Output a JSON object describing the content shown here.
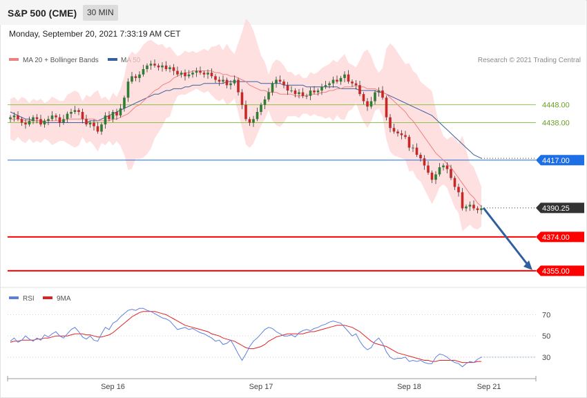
{
  "header": {
    "title": "S&P 500 (CME)",
    "timeframe": "30 MIN",
    "timestamp": "Monday, September 20, 2021 7:33:19 AM CET"
  },
  "legend": {
    "ma20": "MA 20 + Bollinger Bands",
    "ma50": "MA 50",
    "credit": "Research © 2021 Trading Central",
    "rsi": "RSI",
    "rsi_ma": "9MA"
  },
  "colors": {
    "bull": "#2e7d32",
    "bear": "#c62828",
    "band": "#ffd6d6",
    "ma20": "#f08080",
    "ma50": "#3a5f9e",
    "support": "#ff0000",
    "pivot": "#1e6ee6",
    "resistance": "#8bc34a",
    "arrow": "#2f5f9e",
    "rsi": "#5b7fe0",
    "rsi_ma": "#e02020"
  },
  "chart_data": [
    {
      "type": "candlestick",
      "title": "S&P 500 (CME) 30 MIN",
      "x_ticks": [
        "Sep 16",
        "Sep 17",
        "Sep 18",
        "Sep 21"
      ],
      "ylim": [
        4348,
        4468
      ],
      "levels": [
        {
          "label": "4448.00",
          "value": 4448.0,
          "role": "resistance",
          "color": "#8bc34a"
        },
        {
          "label": "4438.00",
          "value": 4438.0,
          "role": "resistance",
          "color": "#8bc34a"
        },
        {
          "label": "4417.00",
          "value": 4417.0,
          "role": "pivot",
          "color": "#1e6ee6"
        },
        {
          "label": "4390.25",
          "value": 4390.25,
          "role": "last",
          "color": "#333333"
        },
        {
          "label": "4374.00",
          "value": 4374.0,
          "role": "support",
          "color": "#ff0000"
        },
        {
          "label": "4355.00",
          "value": 4355.0,
          "role": "support",
          "color": "#ff0000"
        }
      ],
      "close": [
        4441,
        4442,
        4440,
        4438,
        4437,
        4439,
        4441,
        4440,
        4437,
        4439,
        4440,
        4442,
        4441,
        4438,
        4440,
        4443,
        4444,
        4445,
        4444,
        4440,
        4437,
        4438,
        4436,
        4433,
        4437,
        4442,
        4440,
        4444,
        4442,
        4446,
        4452,
        4461,
        4464,
        4463,
        4465,
        4468,
        4470,
        4471,
        4470,
        4469,
        4470,
        4468,
        4469,
        4467,
        4465,
        4466,
        4464,
        4465,
        4466,
        4467,
        4466,
        4465,
        4466,
        4464,
        4462,
        4461,
        4462,
        4459,
        4460,
        4462,
        4455,
        4448,
        4440,
        4438,
        4440,
        4444,
        4448,
        4451,
        4455,
        4460,
        4462,
        4461,
        4459,
        4456,
        4456,
        4454,
        4455,
        4453,
        4453,
        4456,
        4455,
        4456,
        4458,
        4459,
        4460,
        4462,
        4461,
        4463,
        4465,
        4461,
        4460,
        4459,
        4454,
        4450,
        4447,
        4450,
        4455,
        4456,
        4452,
        4441,
        4435,
        4433,
        4432,
        4431,
        4430,
        4424,
        4424,
        4420,
        4418,
        4414,
        4410,
        4406,
        4409,
        4413,
        4414,
        4412,
        4407,
        4402,
        4399,
        4390,
        4391,
        4392,
        4390,
        4389,
        4390
      ],
      "ma20": [
        4440,
        4440,
        4440,
        4440,
        4439,
        4439,
        4439,
        4439,
        4439,
        4439,
        4439,
        4439,
        4439,
        4439,
        4439,
        4440,
        4440,
        4440,
        4440,
        4440,
        4440,
        4440,
        4440,
        4439,
        4439,
        4439,
        4439,
        4440,
        4440,
        4441,
        4442,
        4443,
        4445,
        4447,
        4448,
        4450,
        4452,
        4454,
        4456,
        4457,
        4459,
        4460,
        4461,
        4463,
        4464,
        4465,
        4466,
        4466,
        4467,
        4467,
        4467,
        4467,
        4467,
        4467,
        4466,
        4466,
        4465,
        4465,
        4464,
        4464,
        4463,
        4462,
        4461,
        4459,
        4458,
        4457,
        4456,
        4456,
        4455,
        4455,
        4455,
        4454,
        4454,
        4454,
        4454,
        4453,
        4453,
        4453,
        4453,
        4454,
        4454,
        4454,
        4455,
        4455,
        4456,
        4456,
        4457,
        4457,
        4458,
        4458,
        4458,
        4459,
        4458,
        4458,
        4457,
        4457,
        4457,
        4456,
        4455,
        4454,
        4452,
        4450,
        4448,
        4446,
        4444,
        4441,
        4439,
        4436,
        4433,
        4430,
        4427,
        4424,
        4421,
        4419,
        4417,
        4415,
        4413,
        4410,
        4407,
        4404,
        4401,
        4398,
        4396,
        4393,
        4391
      ],
      "ma50": [
        4444,
        4443,
        4442,
        4441,
        4440,
        4440,
        4439,
        4439,
        4439,
        4438,
        4438,
        4438,
        4438,
        4438,
        4438,
        4438,
        4438,
        4438,
        4438,
        4438,
        4438,
        4439,
        4439,
        4439,
        4440,
        4441,
        4442,
        4443,
        4444,
        4445,
        4446,
        4447,
        4448,
        4449,
        4450,
        4451,
        4452,
        4453,
        4454,
        4454,
        4455,
        4456,
        4456,
        4457,
        4457,
        4457,
        4458,
        4458,
        4459,
        4459,
        4459,
        4460,
        4460,
        4460,
        4460,
        4460,
        4460,
        4461,
        4461,
        4461,
        4461,
        4461,
        4461,
        4461,
        4461,
        4461,
        4460,
        4460,
        4460,
        4460,
        4460,
        4460,
        4459,
        4459,
        4459,
        4459,
        4459,
        4459,
        4458,
        4458,
        4458,
        4458,
        4458,
        4458,
        4458,
        4458,
        4458,
        4457,
        4457,
        4457,
        4457,
        4457,
        4456,
        4456,
        4456,
        4456,
        4456,
        4455,
        4455,
        4454,
        4453,
        4452,
        4451,
        4450,
        4449,
        4448,
        4447,
        4446,
        4445,
        4444,
        4443,
        4442,
        4440,
        4438,
        4436,
        4434,
        4432,
        4430,
        4428,
        4426,
        4424,
        4422,
        4420,
        4419,
        4418
      ],
      "forecast_arrow": {
        "from": 4390.25,
        "to": 4355.0
      }
    },
    {
      "type": "line",
      "title": "RSI",
      "y_ticks": [
        70,
        50,
        30
      ],
      "ylim": [
        15,
        80
      ],
      "series": [
        {
          "name": "RSI",
          "values": [
            45,
            48,
            44,
            46,
            50,
            47,
            45,
            48,
            46,
            51,
            49,
            52,
            54,
            50,
            48,
            52,
            56,
            58,
            54,
            49,
            47,
            50,
            46,
            45,
            52,
            58,
            56,
            62,
            64,
            68,
            71,
            74,
            75,
            74,
            76,
            76,
            74,
            73,
            71,
            69,
            67,
            66,
            64,
            60,
            56,
            57,
            58,
            56,
            57,
            55,
            53,
            52,
            50,
            48,
            45,
            46,
            42,
            43,
            46,
            40,
            33,
            27,
            33,
            40,
            45,
            48,
            52,
            56,
            58,
            57,
            54,
            52,
            50,
            50,
            51,
            49,
            53,
            55,
            56,
            55,
            57,
            58,
            60,
            61,
            63,
            64,
            63,
            62,
            58,
            54,
            50,
            52,
            45,
            40,
            37,
            39,
            45,
            48,
            43,
            35,
            30,
            28,
            29,
            29,
            30,
            26,
            27,
            26,
            27,
            25,
            24,
            24,
            30,
            33,
            32,
            30,
            27,
            25,
            24,
            21,
            24,
            26,
            25,
            28,
            30
          ]
        },
        {
          "name": "9MA",
          "values": [
            44,
            45,
            45,
            46,
            46,
            46,
            46,
            47,
            47,
            48,
            48,
            49,
            50,
            50,
            50,
            50,
            51,
            52,
            52,
            52,
            51,
            51,
            50,
            49,
            49,
            50,
            51,
            53,
            56,
            59,
            62,
            65,
            68,
            70,
            72,
            73,
            73,
            73,
            73,
            72,
            71,
            70,
            68,
            66,
            64,
            62,
            60,
            59,
            58,
            57,
            56,
            55,
            54,
            52,
            51,
            50,
            48,
            47,
            46,
            45,
            43,
            41,
            39,
            38,
            38,
            39,
            40,
            42,
            45,
            47,
            49,
            50,
            51,
            52,
            52,
            52,
            52,
            52,
            53,
            54,
            54,
            55,
            56,
            57,
            58,
            59,
            60,
            60,
            60,
            59,
            58,
            56,
            54,
            51,
            48,
            45,
            43,
            42,
            41,
            40,
            38,
            36,
            34,
            33,
            32,
            31,
            30,
            29,
            28,
            27,
            27,
            26,
            26,
            27,
            27,
            27,
            27,
            27,
            26,
            25,
            25,
            25,
            25,
            26,
            26
          ]
        }
      ]
    }
  ]
}
